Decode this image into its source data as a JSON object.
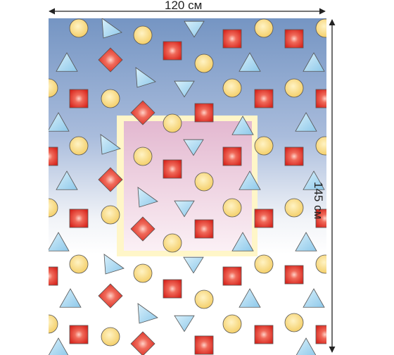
{
  "dimensions": {
    "width_label": "120 см",
    "height_label": "145 см"
  },
  "product": {
    "pattern": "geometric-shapes",
    "shapes": [
      "circle-icon",
      "triangle-icon",
      "square-icon",
      "diamond-icon"
    ],
    "colors": {
      "top_gradient": "#7f9dc6",
      "mid_gradient": "#c9d6ea",
      "bottom": "#ffffff",
      "center_panel_top": "#e6bfd5",
      "center_panel_border": "#fff5c2",
      "circle_fill": "#f8de8e",
      "triangle_fill": "#aedaf2",
      "square_fill": "#e2413a"
    }
  }
}
